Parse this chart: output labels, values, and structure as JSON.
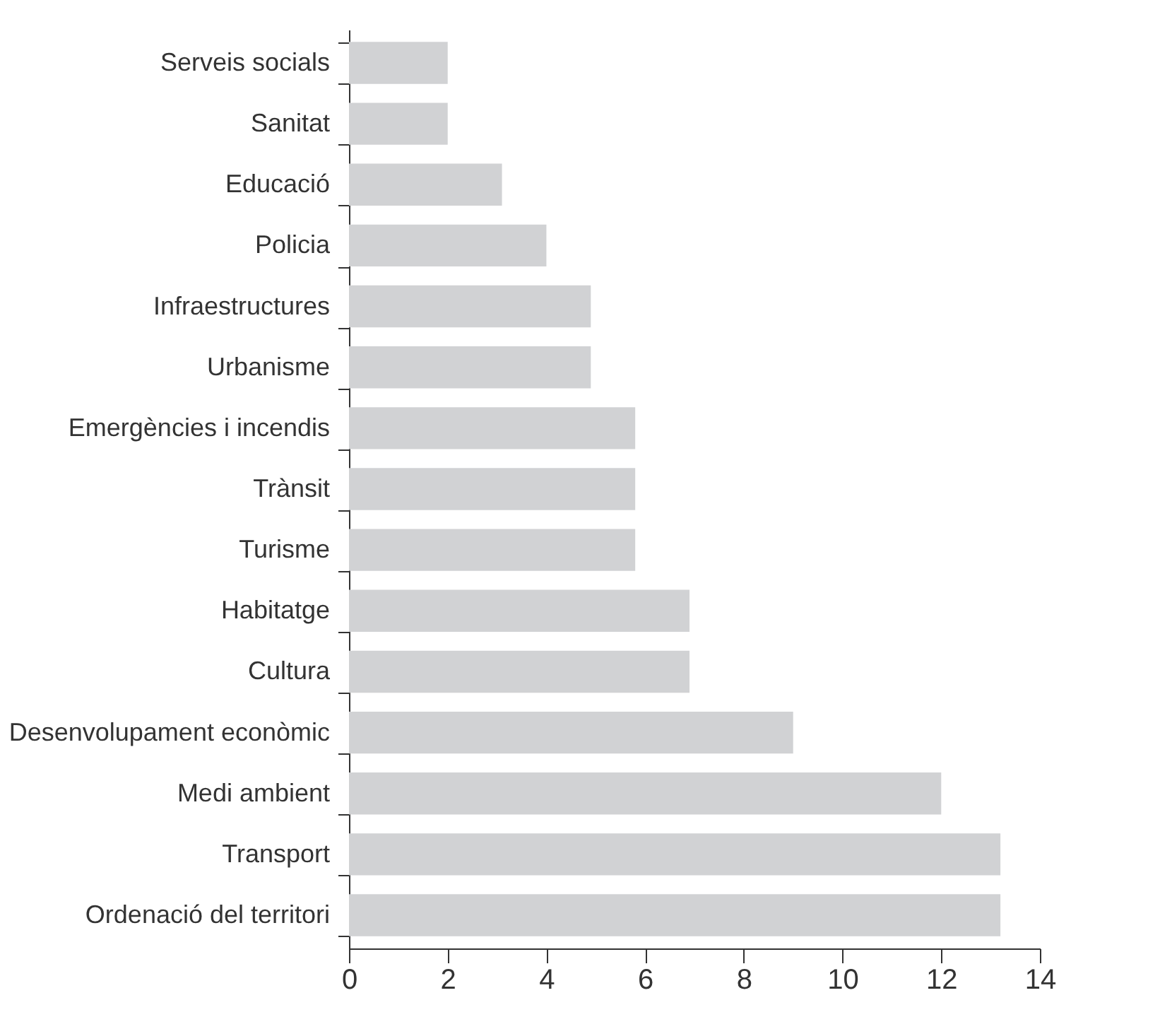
{
  "chart_data": {
    "type": "bar",
    "orientation": "horizontal",
    "categories": [
      "Serveis socials",
      "Sanitat",
      "Educació",
      "Policia",
      "Infraestructures",
      "Urbanisme",
      "Emergències i incendis",
      "Trànsit",
      "Turisme",
      "Habitatge",
      "Cultura",
      "Desenvolupament econòmic",
      "Medi ambient",
      "Transport",
      "Ordenació del territori"
    ],
    "values": [
      2,
      2,
      3.1,
      4,
      4.9,
      4.9,
      5.8,
      5.8,
      5.8,
      6.9,
      6.9,
      9,
      12,
      13.2,
      13.2
    ],
    "color": "#d1d2d4",
    "xlim": [
      0,
      14
    ],
    "xticks": [
      0,
      2,
      4,
      6,
      8,
      10,
      12,
      14
    ],
    "grid": false
  }
}
